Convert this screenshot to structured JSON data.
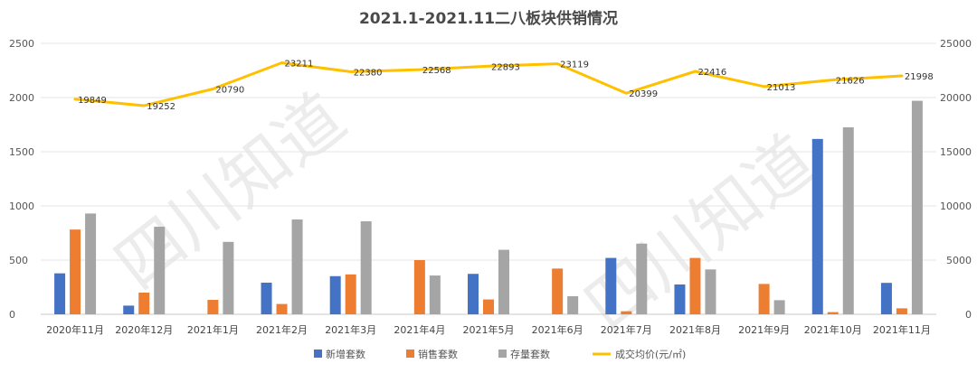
{
  "chart_data": {
    "type": "bar",
    "title": "2021.1-2021.11二八板块供销情况",
    "categories": [
      "2020年11月",
      "2020年12月",
      "2021年1月",
      "2021年2月",
      "2021年3月",
      "2021年4月",
      "2021年5月",
      "2021年6月",
      "2021年7月",
      "2021年8月",
      "2021年9月",
      "2021年10月",
      "2021年11月"
    ],
    "series": [
      {
        "name": "新增套数",
        "type": "bar",
        "axis": "left",
        "color": "#4472C4",
        "values": [
          378,
          80,
          0,
          292,
          352,
          0,
          373,
          0,
          520,
          275,
          0,
          1618,
          290
        ]
      },
      {
        "name": "销售套数",
        "type": "bar",
        "axis": "left",
        "color": "#ED7D31",
        "values": [
          782,
          200,
          133,
          95,
          368,
          500,
          137,
          422,
          28,
          520,
          280,
          20,
          55
        ]
      },
      {
        "name": "存量套数",
        "type": "bar",
        "axis": "left",
        "color": "#A5A5A5",
        "values": [
          930,
          808,
          668,
          875,
          858,
          358,
          595,
          167,
          652,
          414,
          130,
          1725,
          1970
        ]
      },
      {
        "name": "成交均价(元/㎡)",
        "type": "line",
        "axis": "right",
        "color": "#FFC000",
        "values": [
          19849,
          19252,
          20790,
          23211,
          22380,
          22568,
          22893,
          23119,
          20399,
          22416,
          21013,
          21626,
          21998
        ]
      }
    ],
    "price_labels": [
      "19849",
      "19252",
      "20790",
      "23211",
      "22380",
      "22568",
      "22893",
      "23119",
      "20399",
      "22416",
      "21013",
      "21626",
      "21998"
    ],
    "y_left": {
      "min": 0,
      "max": 2500,
      "ticks": [
        "0",
        "500",
        "1000",
        "1500",
        "2000",
        "2500"
      ]
    },
    "y_right": {
      "min": 0,
      "max": 25000,
      "ticks": [
        "0",
        "5000",
        "10000",
        "15000",
        "20000",
        "25000"
      ]
    },
    "grid": true,
    "legend_position": "bottom",
    "watermark": "四川知道"
  }
}
